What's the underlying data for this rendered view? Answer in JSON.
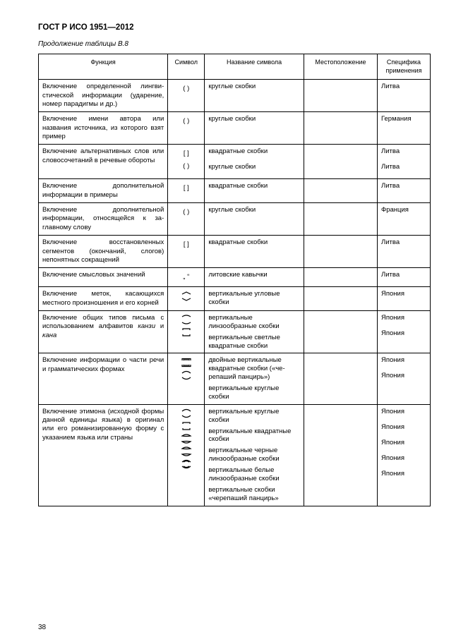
{
  "standard_code": "ГОСТ Р ИСО 1951—2012",
  "table_caption": "Продолжение таблицы В.8",
  "page_number": "38",
  "headers": {
    "func": "Функция",
    "symbol": "Символ",
    "name": "Название символа",
    "location": "Местоположение",
    "application": "Специфика применения"
  },
  "rows": [
    {
      "func": "Включение определенной лингви­стической информации (ударение, номер парадигмы и др.)",
      "symbols": [
        "( )"
      ],
      "names": [
        "круглые скобки"
      ],
      "apps": [
        "Литва"
      ]
    },
    {
      "func": "Включение имени автора или названия источника, из которого взят пример",
      "symbols": [
        "( )"
      ],
      "names": [
        "круглые скобки"
      ],
      "apps": [
        "Германия"
      ]
    },
    {
      "func": "Включение альтернативных слов или словосочетаний в речевые обороты",
      "symbols": [
        "[ ]",
        "( )"
      ],
      "names": [
        "квадратные скобки",
        "круглые скобки"
      ],
      "apps": [
        "Литва",
        "Литва"
      ]
    },
    {
      "func": "Включение дополнительной информации в примеры",
      "symbols": [
        "[ ]"
      ],
      "names": [
        "квадратные скобки"
      ],
      "apps": [
        "Литва"
      ]
    },
    {
      "func": "Включение дополнительной информации, относящейся к за­главному слову",
      "symbols": [
        "( )"
      ],
      "names": [
        "круглые скобки"
      ],
      "apps": [
        "Франция"
      ]
    },
    {
      "func": "Включение восстановленных сегментов (окончаний, слогов) непонятных сокращений",
      "symbols": [
        "[ ]"
      ],
      "names": [
        "квадратные скобки"
      ],
      "apps": [
        "Литва"
      ]
    },
    {
      "func": "Включение смысловых значений",
      "symbols": [
        "„ “"
      ],
      "names": [
        "литовские кавычки"
      ],
      "apps": [
        "Литва"
      ]
    },
    {
      "func": "Включение меток, касающихся местного произношения и его корней",
      "symbols": [
        "svg:vangle"
      ],
      "names": [
        "вертикальные угловые скобки"
      ],
      "apps": [
        "Япония"
      ]
    },
    {
      "func": "Включение общих типов письма с использованием алфавитов канзи и кана",
      "func_italic_words": [
        "канзи",
        "кана"
      ],
      "symbols": [
        "svg:vlens-solid",
        "svg:vsquare-light"
      ],
      "names": [
        "вертикальные линзообразные скобки",
        "вертикальные светлые квадратные скобки"
      ],
      "apps": [
        "Япония",
        "Япония"
      ]
    },
    {
      "func": "Включение информации о части речи и грамматических формах",
      "symbols": [
        "svg:vdouble-square",
        "svg:vround"
      ],
      "names": [
        "двойные вертикальные квадратные скобки («че­репаший панцирь»)",
        "вертикальные круглые скобки"
      ],
      "apps": [
        "Япония",
        "Япония"
      ]
    },
    {
      "func": "Включение этимона (исходной формы данной единицы языка) в оригинал или его романизирован­ную форму с указанием языка или страны",
      "symbols": [
        "svg:vround",
        "svg:vsquare",
        "svg:vlens-black",
        "svg:vlens-white",
        "svg:vshell"
      ],
      "names": [
        "вертикальные круглые скобки",
        "вертикальные квадрат­ные скобки",
        "вертикальные черные линзообразные скобки",
        "вертикальные белые линзообразные скобки",
        "вертикальные скобки «черепаший панцирь»"
      ],
      "apps": [
        "Япония",
        "Япония",
        "Япония",
        "Япония",
        "Япония"
      ]
    }
  ]
}
